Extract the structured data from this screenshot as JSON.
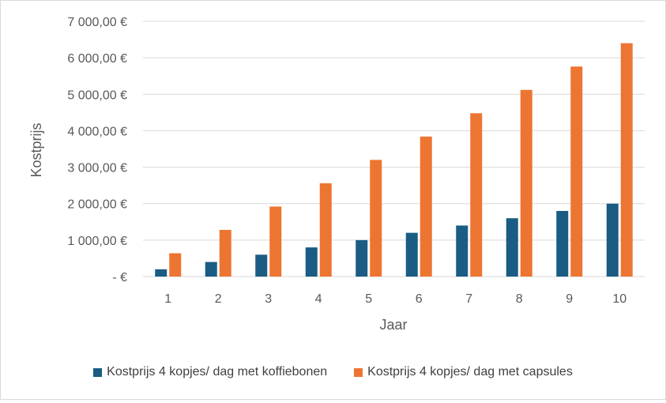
{
  "chart_data": {
    "type": "bar",
    "title": "",
    "xlabel": "Jaar",
    "ylabel": "Kostprijs",
    "categories": [
      "1",
      "2",
      "3",
      "4",
      "5",
      "6",
      "7",
      "8",
      "9",
      "10"
    ],
    "series": [
      {
        "name": "Kostprijs 4 kopjes/ dag met koffiebonen",
        "color": "#1a5c84",
        "values": [
          200,
          400,
          600,
          800,
          1000,
          1200,
          1400,
          1600,
          1800,
          2000
        ]
      },
      {
        "name": "Kostprijs 4 kopjes/ dag met capsules",
        "color": "#ed7532",
        "values": [
          640,
          1280,
          1920,
          2560,
          3200,
          3840,
          4480,
          5120,
          5760,
          6400
        ]
      }
    ],
    "ylim": [
      0,
      7000
    ],
    "yticks": [
      0,
      1000,
      2000,
      3000,
      4000,
      5000,
      6000,
      7000
    ],
    "ytick_labels": [
      "-  €",
      "1 000,00 €",
      "2 000,00 €",
      "3 000,00 €",
      "4 000,00 €",
      "5 000,00 €",
      "6 000,00 €",
      "7 000,00 €"
    ],
    "grid": true,
    "legend_position": "bottom"
  }
}
